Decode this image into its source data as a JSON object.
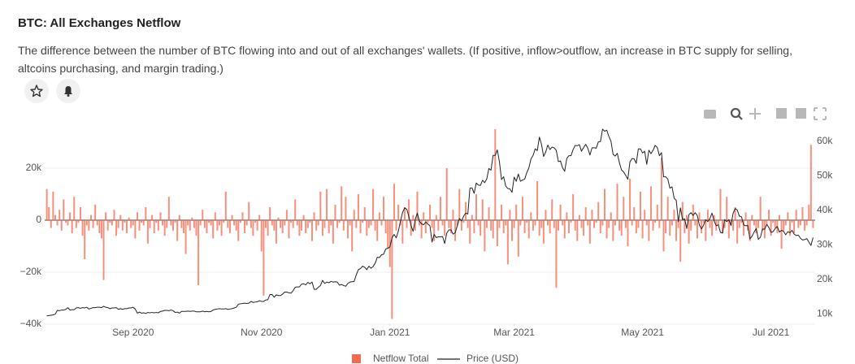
{
  "title": "BTC: All Exchanges Netflow",
  "subtitle": "The difference between the number of BTC flowing into and out of all exchanges' wallets. (If positive, inflow>outflow, an increase in BTC supply for selling, altcoins purchasing, and margin trading.)",
  "chart_data": {
    "type": "bar",
    "xlim": [
      -1,
      365
    ],
    "xticks": [
      {
        "value": 41,
        "label": "Sep 2020"
      },
      {
        "value": 102,
        "label": "Nov 2020"
      },
      {
        "value": 163,
        "label": "Jan 2021"
      },
      {
        "value": 222,
        "label": "Mar 2021"
      },
      {
        "value": 283,
        "label": "May 2021"
      },
      {
        "value": 344,
        "label": "Jul 2021"
      }
    ],
    "ylim": [
      -40000,
      37000
    ],
    "yticks": [
      {
        "value": -40000,
        "label": "−40k"
      },
      {
        "value": -20000,
        "label": "−20k"
      },
      0,
      {
        "value": 20000,
        "label": "20k"
      }
    ],
    "y2lim": [
      7000,
      65000
    ],
    "y2ticks": [
      {
        "value": 10000,
        "label": "10k"
      },
      {
        "value": 20000,
        "label": "20k"
      },
      {
        "value": 30000,
        "label": "30k"
      },
      {
        "value": 40000,
        "label": "40k"
      },
      {
        "value": 50000,
        "label": "50k"
      },
      {
        "value": 60000,
        "label": "60k"
      }
    ],
    "grid": true,
    "legend": "bottom",
    "series": [
      {
        "name": "Netflow Total",
        "type": "bar",
        "color": "#f4694f",
        "values": [
          12000,
          5000,
          -3000,
          11000,
          2000,
          -2000,
          4000,
          -4000,
          8000,
          -1000,
          -2000,
          3000,
          -5000,
          9000,
          -3000,
          -1000,
          5000,
          -6000,
          -15000,
          -2000,
          -4000,
          2000,
          -3000,
          6000,
          -2000,
          -5000,
          -7000,
          -23000,
          3000,
          -4000,
          -1000,
          -2000,
          4000,
          -6000,
          -3000,
          2000,
          -4000,
          -1000,
          -5000,
          1000,
          -3000,
          -2000,
          -7000,
          3000,
          -4000,
          -1000,
          -2000,
          5000,
          -9000,
          -3000,
          2000,
          -5000,
          -1000,
          -4000,
          3000,
          -2000,
          -6000,
          -3000,
          9000,
          -2000,
          -4000,
          -1000,
          -8000,
          2000,
          -3000,
          -5000,
          -13000,
          -2000,
          -4000,
          1000,
          -3000,
          -6000,
          -25000,
          -2000,
          4000,
          -3000,
          -5000,
          -1000,
          -2000,
          -7000,
          3000,
          -4000,
          -2000,
          -6000,
          -1000,
          11000,
          -3000,
          -5000,
          2000,
          -2000,
          -4000,
          -8000,
          -1000,
          3000,
          -5000,
          -2000,
          7000,
          -3000,
          -6000,
          -1000,
          -4000,
          2000,
          -12000,
          -29000,
          -3000,
          -6000,
          5000,
          -2000,
          -4000,
          -9000,
          1000,
          -3000,
          -5000,
          -2000,
          4000,
          -7000,
          -1000,
          -3000,
          8000,
          -2000,
          -6000,
          -4000,
          2000,
          -5000,
          -3000,
          -1000,
          -8000,
          3000,
          -4000,
          -2000,
          11000,
          -6000,
          -3000,
          12000,
          -5000,
          -2000,
          -9000,
          6000,
          -3000,
          -1000,
          13000,
          -4000,
          9000,
          -7000,
          -2000,
          -12000,
          4000,
          -3000,
          10000,
          -5000,
          -1000,
          5000,
          -6000,
          -3000,
          -2000,
          12000,
          -4000,
          -8000,
          3000,
          -2000,
          9000,
          -5000,
          -11000,
          -18000,
          -38000,
          14000,
          -4000,
          6000,
          -2000,
          -9000,
          5000,
          -3000,
          8000,
          -6000,
          2000,
          -4000,
          11000,
          -2000,
          -7000,
          3000,
          -5000,
          -1000,
          6000,
          -3000,
          -8000,
          2000,
          -4000,
          9000,
          -2000,
          -6000,
          20000,
          -3000,
          -5000,
          4000,
          -8000,
          -2000,
          12000,
          -4000,
          -1000,
          7000,
          -3000,
          -9000,
          2000,
          -5000,
          10000,
          -2000,
          -6000,
          8000,
          -12000,
          -3000,
          5000,
          -4000,
          -7000,
          35000,
          -10000,
          -3000,
          6000,
          -5000,
          -2000,
          -17000,
          4000,
          -8000,
          -3000,
          6000,
          -14000,
          -2000,
          9000,
          -5000,
          -1000,
          -7000,
          3000,
          -4000,
          -2000,
          15000,
          -6000,
          -3000,
          -9000,
          4000,
          -2000,
          -5000,
          8000,
          -3000,
          -26000,
          -4000,
          6000,
          -2000,
          -7000,
          3000,
          -5000,
          -1000,
          10000,
          -4000,
          -8000,
          2000,
          -3000,
          -6000,
          5000,
          -2000,
          -9000,
          4000,
          -3000,
          -1000,
          7000,
          -5000,
          -2000,
          12000,
          -7000,
          -3000,
          3000,
          -8000,
          -2000,
          14000,
          -4000,
          -6000,
          9000,
          -3000,
          -10000,
          16000,
          -2000,
          5000,
          -5000,
          -3000,
          11000,
          -7000,
          4000,
          -2000,
          -8000,
          13000,
          -4000,
          -1000,
          6000,
          -3000,
          24000,
          -12000,
          -5000,
          9000,
          -6000,
          -2000,
          4000,
          -8000,
          -3000,
          -16000,
          7000,
          -5000,
          2000,
          -9000,
          -4000,
          6000,
          -2000,
          -7000,
          3000,
          -5000,
          -1000,
          -8000,
          4000,
          -3000,
          -6000,
          2000,
          -4000,
          -2000,
          12000,
          -5000,
          -3000,
          9000,
          -7000,
          -2000,
          -4000,
          5000,
          -9000,
          -3000,
          -1000,
          -6000,
          3000,
          -4000,
          -8000,
          2000,
          -2000,
          -5000,
          -3000,
          9000,
          -4000,
          -7000,
          -2000,
          4000,
          -6000,
          -1000,
          -3000,
          -5000,
          2000,
          -11000,
          -4000,
          -2000,
          3000,
          -6000,
          -1000,
          -5000,
          4000,
          -3000,
          -2000,
          5000,
          -4000,
          -2000,
          6000,
          29000,
          -3000
        ]
      },
      {
        "name": "Price (USD)",
        "type": "line",
        "axis": "y2",
        "color": "#222222",
        "values": [
          9400,
          9500,
          9600,
          9700,
          9900,
          11000,
          10900,
          11100,
          11100,
          11300,
          11800,
          11100,
          11200,
          11200,
          11700,
          11800,
          11600,
          11800,
          11700,
          11900,
          11400,
          11600,
          11800,
          11800,
          11900,
          11900,
          11800,
          12200,
          11900,
          11800,
          11500,
          11700,
          11700,
          11800,
          11300,
          11500,
          11300,
          11500,
          11500,
          11700,
          11700,
          11900,
          11400,
          10200,
          10500,
          10200,
          10300,
          10100,
          10400,
          10300,
          10400,
          10300,
          10400,
          10300,
          10700,
          10800,
          11000,
          11000,
          10900,
          11100,
          10900,
          10400,
          10500,
          10200,
          10700,
          10700,
          10700,
          10800,
          10700,
          10800,
          10800,
          10600,
          10600,
          10600,
          10800,
          10600,
          10700,
          10600,
          10700,
          11100,
          11300,
          11400,
          11500,
          11400,
          11400,
          11500,
          11300,
          11400,
          11500,
          11700,
          11900,
          12800,
          12900,
          13000,
          13100,
          13000,
          13100,
          13600,
          13300,
          13400,
          13500,
          13800,
          13600,
          13600,
          14000,
          14100,
          15600,
          15600,
          14800,
          15500,
          15300,
          15300,
          15700,
          16300,
          16300,
          16100,
          16000,
          16700,
          17700,
          17800,
          17800,
          18600,
          18700,
          18400,
          19100,
          18700,
          19200,
          17100,
          17100,
          17700,
          18200,
          19700,
          18800,
          19200,
          19000,
          19400,
          19200,
          19300,
          19200,
          18300,
          18500,
          18200,
          18000,
          18800,
          19200,
          19300,
          19400,
          21300,
          22800,
          23100,
          23800,
          23500,
          22800,
          23800,
          23200,
          23700,
          24700,
          26400,
          26300,
          27100,
          27300,
          28800,
          29000,
          29400,
          32100,
          33000,
          32000,
          34000,
          36800,
          39400,
          40700,
          40300,
          38200,
          35600,
          33900,
          37300,
          39200,
          36800,
          36100,
          35800,
          36600,
          36000,
          35500,
          30800,
          33000,
          32100,
          32300,
          32300,
          32400,
          30400,
          33400,
          34300,
          34300,
          33100,
          33500,
          35500,
          37600,
          36900,
          38300,
          39200,
          38900,
          46400,
          46500,
          44900,
          47900,
          47300,
          47200,
          48700,
          48000,
          49100,
          52100,
          51600,
          55900,
          55900,
          57500,
          54100,
          48900,
          49700,
          47000,
          46300,
          46200,
          45200,
          49600,
          48400,
          50500,
          48400,
          48800,
          49000,
          50900,
          52300,
          54900,
          55900,
          57800,
          57300,
          61200,
          59100,
          55600,
          56900,
          58900,
          57600,
          58300,
          58100,
          57400,
          54100,
          54300,
          52300,
          51300,
          55000,
          55800,
          55800,
          57600,
          58800,
          58700,
          59000,
          57100,
          58200,
          59100,
          58000,
          56000,
          58100,
          58100,
          58000,
          59800,
          59900,
          63500,
          62900,
          63200,
          61400,
          60000,
          56200,
          55700,
          56500,
          53800,
          51700,
          51100,
          50100,
          49000,
          54000,
          55000,
          54900,
          53600,
          57800,
          57800,
          56600,
          57100,
          53300,
          57400,
          56400,
          57400,
          58800,
          58200,
          55800,
          56700,
          49700,
          49700,
          49000,
          46400,
          46800,
          43500,
          42900,
          36700,
          40700,
          37300,
          37500,
          34700,
          38700,
          39300,
          38500,
          39300,
          38500,
          35700,
          34600,
          35700,
          37300,
          36700,
          37600,
          39200,
          36900,
          35500,
          35800,
          33600,
          33400,
          37300,
          36700,
          37300,
          35600,
          39100,
          40500,
          40100,
          38300,
          38100,
          35800,
          35500,
          35600,
          31700,
          32500,
          33700,
          34700,
          31600,
          32200,
          34600,
          34500,
          35900,
          35000,
          33600,
          33800,
          34700,
          35300,
          33700,
          34200,
          33900,
          32900,
          33800,
          33500,
          34200,
          33100,
          32700,
          32800,
          31900,
          31400,
          31500,
          31800,
          30800,
          29800,
          32100
        ]
      }
    ]
  }
}
